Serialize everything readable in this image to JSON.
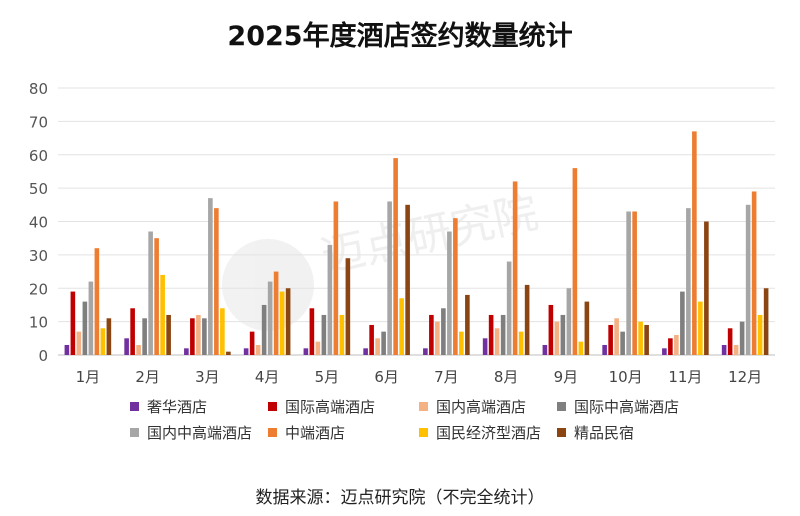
{
  "chart_data": {
    "type": "bar",
    "title": "2025年度酒店签约数量统计",
    "source": "数据来源：迈点研究院（不完全统计）",
    "watermark": "迈点研究院",
    "ylim": [
      0,
      80
    ],
    "yticks": [
      "0",
      "10",
      "20",
      "30",
      "40",
      "50",
      "60",
      "70",
      "80"
    ],
    "grid": true,
    "legend_position": "bottom",
    "categories": [
      "1月",
      "2月",
      "3月",
      "4月",
      "5月",
      "6月",
      "7月",
      "8月",
      "9月",
      "10月",
      "11月",
      "12月"
    ],
    "series": [
      {
        "name": "奢华酒店",
        "color": "#7030A0",
        "values": [
          3,
          5,
          2,
          2,
          2,
          2,
          2,
          5,
          3,
          3,
          2,
          3
        ]
      },
      {
        "name": "国际高端酒店",
        "color": "#C00000",
        "values": [
          19,
          14,
          11,
          7,
          14,
          9,
          12,
          12,
          15,
          9,
          5,
          8
        ]
      },
      {
        "name": "国内高端酒店",
        "color": "#F4B183",
        "values": [
          7,
          3,
          12,
          3,
          4,
          5,
          10,
          8,
          10,
          11,
          6,
          3
        ]
      },
      {
        "name": "国际中高端酒店",
        "color": "#7F7F7F",
        "values": [
          16,
          11,
          11,
          15,
          12,
          7,
          14,
          12,
          12,
          7,
          19,
          10
        ]
      },
      {
        "name": "国内中高端酒店",
        "color": "#A6A6A6",
        "values": [
          22,
          37,
          47,
          22,
          33,
          46,
          37,
          28,
          20,
          43,
          44,
          45
        ]
      },
      {
        "name": "中端酒店",
        "color": "#ED7D31",
        "values": [
          32,
          35,
          44,
          25,
          46,
          59,
          41,
          52,
          56,
          43,
          67,
          49
        ]
      },
      {
        "name": "国民经济型酒店",
        "color": "#FFC000",
        "values": [
          8,
          24,
          14,
          19,
          12,
          17,
          7,
          7,
          4,
          10,
          16,
          12
        ]
      },
      {
        "name": "精品民宿",
        "color": "#8B4513",
        "values": [
          11,
          12,
          1,
          20,
          29,
          45,
          18,
          21,
          16,
          9,
          40,
          20
        ]
      }
    ]
  }
}
